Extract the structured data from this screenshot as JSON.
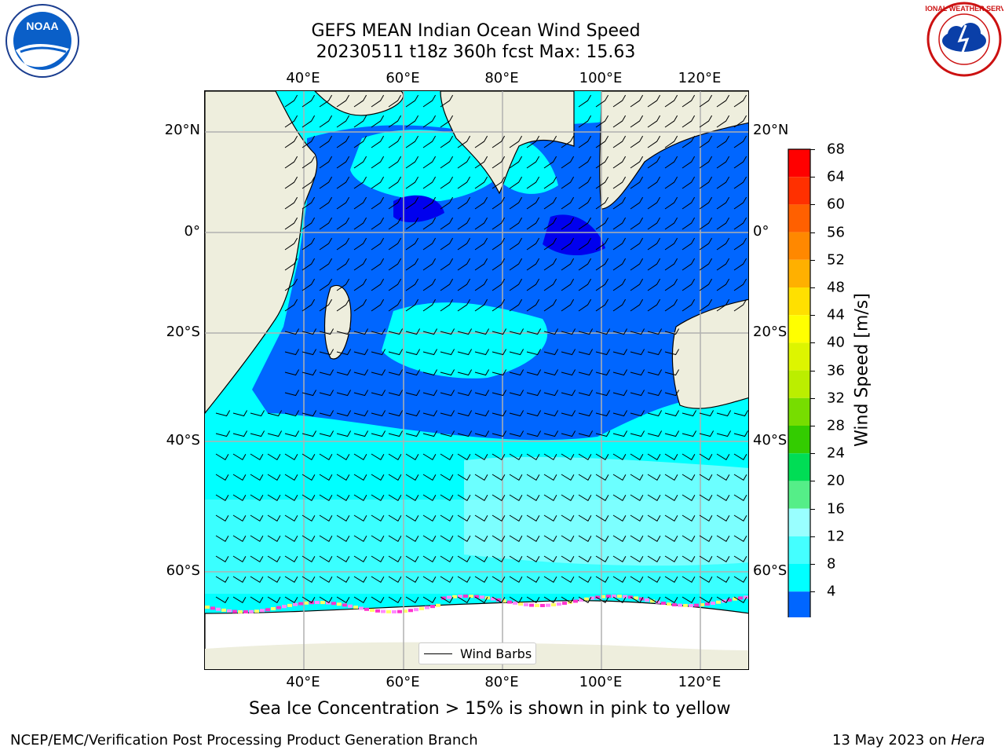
{
  "title": {
    "line1": "GEFS MEAN Indian Ocean Wind Speed",
    "line2": "20230511 t18z 360h fcst   Max: 15.63"
  },
  "axes": {
    "lon_labels": [
      "40°E",
      "60°E",
      "80°E",
      "100°E",
      "120°E"
    ],
    "lat_labels": [
      "20°N",
      "0°",
      "20°S",
      "40°S",
      "60°S"
    ]
  },
  "legend": {
    "label": "Wind Barbs"
  },
  "colorbar": {
    "label": "Wind Speed [m/s]",
    "ticks": [
      "68",
      "64",
      "60",
      "56",
      "52",
      "48",
      "44",
      "40",
      "36",
      "32",
      "28",
      "24",
      "20",
      "16",
      "12",
      "8",
      "4"
    ],
    "colors": [
      "#ff0000",
      "#ff3000",
      "#ff6000",
      "#ff8800",
      "#ffb000",
      "#ffe000",
      "#ffff00",
      "#ddf500",
      "#bbee00",
      "#77dd00",
      "#33cc00",
      "#00dd55",
      "#55ee88",
      "#99ffff",
      "#44ffff",
      "#00ffff",
      "#0066ff"
    ],
    "extend_color": "#0000ee"
  },
  "annotation": "Sea Ice Concentration > 15% is shown in pink to yellow",
  "footer": {
    "left": "NCEP/EMC/Verification Post Processing Product Generation Branch",
    "right_date": "13 May 2023 on ",
    "right_host": "Hera"
  },
  "logos": {
    "left": "NOAA",
    "right": "NATIONAL WEATHER SERVICE"
  },
  "map": {
    "land_color": "#eeeedd",
    "ocean_base": "#00ffff",
    "band_colors": [
      "#0066ff",
      "#0000ee",
      "#44ffff",
      "#99ffff"
    ],
    "ice_colors": [
      "#ff33cc",
      "#ffff66",
      "#ff88ff"
    ]
  }
}
